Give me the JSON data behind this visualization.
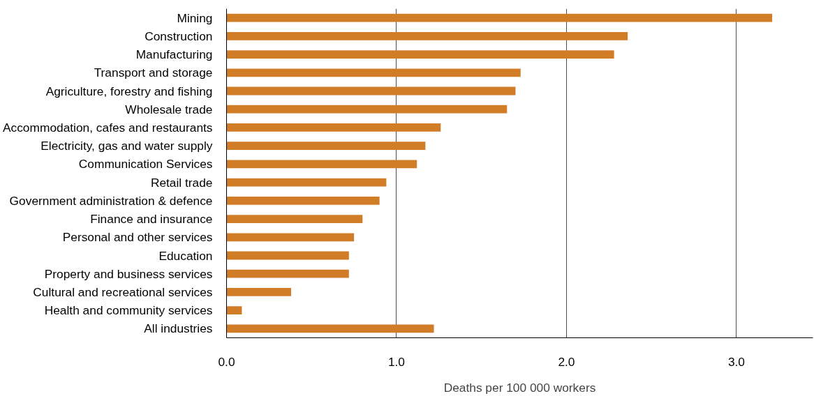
{
  "chart_data": {
    "type": "bar",
    "orientation": "horizontal",
    "xlabel": "Deaths per 100 000 workers",
    "categories": [
      "Mining",
      "Construction",
      "Manufacturing",
      "Transport and storage",
      "Agriculture, forestry and fishing",
      "Wholesale trade",
      "Accommodation, cafes and restaurants",
      "Electricity, gas and water supply",
      "Communication Services",
      "Retail trade",
      "Government administration & defence",
      "Finance and insurance",
      "Personal and other services",
      "Education",
      "Property and business services",
      "Cultural and recreational services",
      "Health and community services",
      "All industries"
    ],
    "values": [
      3.21,
      2.36,
      2.28,
      1.73,
      1.7,
      1.65,
      1.26,
      1.17,
      1.12,
      0.94,
      0.9,
      0.8,
      0.75,
      0.72,
      0.72,
      0.38,
      0.09,
      1.22
    ],
    "color": "#d17d28",
    "xlim": [
      0,
      3.45
    ],
    "xticks": [
      {
        "value": 0,
        "label": "0.0"
      },
      {
        "value": 1,
        "label": "1.0"
      },
      {
        "value": 2,
        "label": "2.0"
      },
      {
        "value": 3,
        "label": "3.0"
      }
    ],
    "grid": "x"
  }
}
